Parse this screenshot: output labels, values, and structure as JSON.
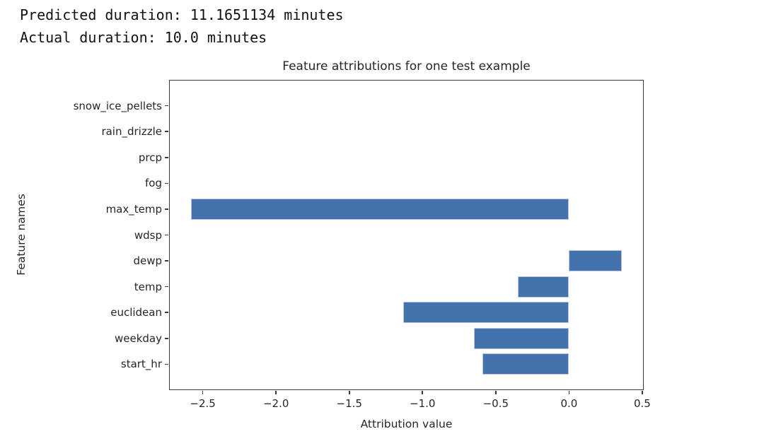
{
  "header": {
    "line1": "Predicted duration: 11.1651134 minutes",
    "line2": "Actual duration: 10.0 minutes"
  },
  "chart_data": {
    "type": "bar",
    "orientation": "horizontal",
    "title": "Feature attributions for one test example",
    "xlabel": "Attribution value",
    "ylabel": "Feature names",
    "categories": [
      "snow_ice_pellets",
      "rain_drizzle",
      "prcp",
      "fog",
      "max_temp",
      "wdsp",
      "dewp",
      "temp",
      "euclidean",
      "weekday",
      "start_hr"
    ],
    "values": [
      0,
      0,
      0,
      0,
      -2.58,
      0,
      0.36,
      -0.35,
      -1.13,
      -0.65,
      -0.59
    ],
    "xlim": [
      -2.73,
      0.51
    ],
    "xticks": [
      -2.5,
      -2.0,
      -1.5,
      -1.0,
      -0.5,
      0.0,
      0.5
    ],
    "xtick_labels": [
      "−2.5",
      "−2.0",
      "−1.5",
      "−1.0",
      "−0.5",
      "0.0",
      "0.5"
    ],
    "grid": false,
    "legend": null,
    "bar_color": "#4472ac",
    "bar_edge_color": "#b7c6e0",
    "axis_color": "#3a3a3a",
    "text_color": "#262626"
  }
}
